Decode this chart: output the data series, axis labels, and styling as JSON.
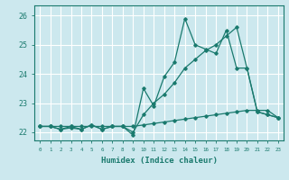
{
  "title": "",
  "xlabel": "Humidex (Indice chaleur)",
  "background_color": "#cce8ee",
  "grid_color": "#ffffff",
  "line_color": "#1a7a6e",
  "xlim": [
    -0.5,
    23.5
  ],
  "ylim": [
    21.72,
    26.35
  ],
  "yticks": [
    22,
    23,
    24,
    25,
    26
  ],
  "ytick_labels": [
    "22",
    "23",
    "24",
    "25",
    "26"
  ],
  "hours": [
    0,
    1,
    2,
    3,
    4,
    5,
    6,
    7,
    8,
    9,
    10,
    11,
    12,
    13,
    14,
    15,
    16,
    17,
    18,
    19,
    20,
    21,
    22,
    23
  ],
  "series1": [
    22.2,
    22.2,
    22.1,
    22.2,
    22.1,
    22.25,
    22.1,
    22.2,
    22.2,
    21.9,
    23.5,
    22.9,
    23.9,
    24.4,
    25.9,
    25.0,
    24.85,
    24.7,
    25.5,
    24.2,
    24.2,
    22.7,
    22.6,
    22.5
  ],
  "series2": [
    22.2,
    22.2,
    22.1,
    22.15,
    22.1,
    22.25,
    22.1,
    22.2,
    22.2,
    22.0,
    22.6,
    23.0,
    23.3,
    23.7,
    24.2,
    24.5,
    24.8,
    25.0,
    25.3,
    25.6,
    24.2,
    22.7,
    22.6,
    22.5
  ],
  "series3": [
    22.2,
    22.2,
    22.2,
    22.2,
    22.2,
    22.2,
    22.2,
    22.2,
    22.2,
    22.2,
    22.25,
    22.3,
    22.35,
    22.4,
    22.45,
    22.5,
    22.55,
    22.6,
    22.65,
    22.7,
    22.75,
    22.75,
    22.75,
    22.5
  ]
}
